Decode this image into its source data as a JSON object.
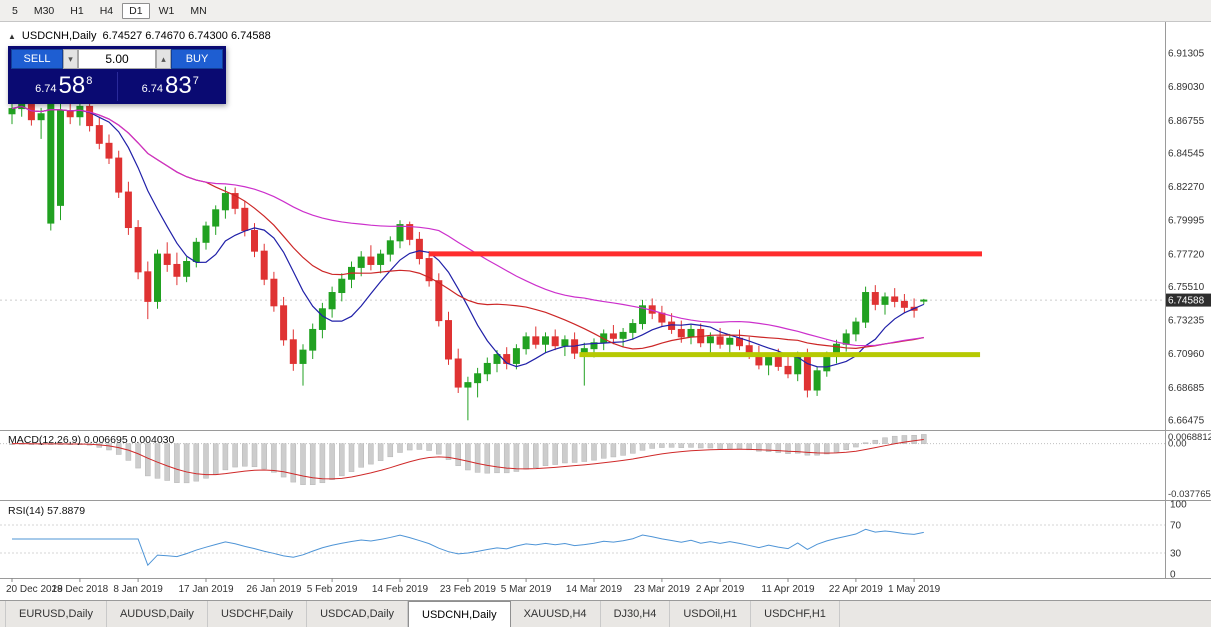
{
  "toolbar": {
    "timeframes": [
      "5",
      "M30",
      "H1",
      "H4",
      "D1",
      "W1",
      "MN"
    ],
    "active_timeframe": "D1"
  },
  "header": {
    "symbol": "USDCNH,Daily",
    "ohlc": "6.74527 6.74670 6.74300 6.74588"
  },
  "icons": {
    "quick_trade_toggle": "▲",
    "spin_up": "▴",
    "spin_down": "▾"
  },
  "trade_panel": {
    "sell_label": "SELL",
    "buy_label": "BUY",
    "lot_value": "5.00",
    "sell_price_main": "6.74",
    "sell_price_big": "58",
    "sell_price_sup": "8",
    "buy_price_main": "6.74",
    "buy_price_big": "83",
    "buy_price_sup": "7"
  },
  "price_axis": {
    "labels": [
      "6.91305",
      "6.89030",
      "6.86755",
      "6.84545",
      "6.82270",
      "6.79995",
      "6.77720",
      "6.75510",
      "6.73235",
      "6.70960",
      "6.68685",
      "6.66475"
    ],
    "current_price": "6.74588"
  },
  "indicators": {
    "macd": {
      "label": "MACD(12,26,9) 0.006695 0.004030",
      "axis_labels": [
        "0.0068812",
        "0.00",
        "-0.037765"
      ]
    },
    "rsi": {
      "label": "RSI(14) 57.8879",
      "axis_labels": [
        "100",
        "70",
        "30",
        "0"
      ]
    }
  },
  "tabs": {
    "items": [
      "EURUSD,Daily",
      "AUDUSD,Daily",
      "USDCHF,Daily",
      "USDCAD,Daily",
      "USDCNH,Daily",
      "XAUUSD,H4",
      "DJ30,H4",
      "USDOil,H1",
      "USDCHF,H1"
    ],
    "active": "USDCNH,Daily"
  },
  "chart_data": {
    "type": "candlestick",
    "symbol": "USDCNH",
    "timeframe": "Daily",
    "bid": 6.74588,
    "y_range": [
      6.662,
      6.926
    ],
    "colors": {
      "up": "#21a121",
      "down": "#df3333",
      "macd_hist": "#cdcdcd",
      "macd_signal": "#cf2929",
      "rsi": "#4e94d6",
      "badge_bg": "#2e2e2e"
    },
    "overlays": {
      "ma_fast": {
        "period": 8,
        "color": "#2020a8"
      },
      "ma_mid": {
        "period": 21,
        "color": "#cc2626"
      },
      "ma_slow": {
        "period": 45,
        "color": "#cc30cc"
      }
    },
    "hlines": [
      {
        "name": "resistance-line",
        "price": 6.7772,
        "from": 43,
        "to": 100,
        "color": "#ff2d2d",
        "width": 5
      },
      {
        "name": "support-line",
        "price": 6.709,
        "from": 58.5,
        "to": 99.8,
        "color": "#b6c902",
        "width": 5
      }
    ],
    "macd": {
      "fast": 12,
      "slow": 26,
      "signal": 9,
      "value": 0.006695,
      "signal_value": 0.00403
    },
    "rsi": {
      "period": 14,
      "value": 57.8879
    },
    "date_ticks": [
      [
        0,
        "20 Dec 2018"
      ],
      [
        7,
        "29 Dec 2018"
      ],
      [
        13,
        "8 Jan 2019"
      ],
      [
        20,
        "17 Jan 2019"
      ],
      [
        27,
        "26 Jan 2019"
      ],
      [
        33,
        "5 Feb 2019"
      ],
      [
        40,
        "14 Feb 2019"
      ],
      [
        47,
        "23 Feb 2019"
      ],
      [
        53,
        "5 Mar 2019"
      ],
      [
        60,
        "14 Mar 2019"
      ],
      [
        67,
        "23 Mar 2019"
      ],
      [
        73,
        "2 Apr 2019"
      ],
      [
        80,
        "11 Apr 2019"
      ],
      [
        87,
        "22 Apr 2019"
      ],
      [
        93,
        "1 May 2019"
      ]
    ],
    "candles": [
      [
        6.872,
        6.879,
        6.865,
        6.8755
      ],
      [
        6.8755,
        6.882,
        6.87,
        6.8785
      ],
      [
        6.8785,
        6.885,
        6.864,
        6.868
      ],
      [
        6.868,
        6.876,
        6.855,
        6.872
      ],
      [
        6.798,
        6.886,
        6.793,
        6.88
      ],
      [
        6.81,
        6.88,
        6.8,
        6.874
      ],
      [
        6.874,
        6.882,
        6.865,
        6.87
      ],
      [
        6.87,
        6.88,
        6.864,
        6.877
      ],
      [
        6.877,
        6.885,
        6.86,
        6.864
      ],
      [
        6.864,
        6.87,
        6.848,
        6.852
      ],
      [
        6.852,
        6.858,
        6.838,
        6.842
      ],
      [
        6.842,
        6.847,
        6.815,
        6.819
      ],
      [
        6.819,
        6.826,
        6.79,
        6.795
      ],
      [
        6.795,
        6.8,
        6.76,
        6.765
      ],
      [
        6.765,
        6.772,
        6.733,
        6.745
      ],
      [
        6.745,
        6.78,
        6.74,
        6.777
      ],
      [
        6.777,
        6.785,
        6.765,
        6.77
      ],
      [
        6.77,
        6.778,
        6.756,
        6.762
      ],
      [
        6.762,
        6.775,
        6.758,
        6.772
      ],
      [
        6.772,
        6.788,
        6.768,
        6.785
      ],
      [
        6.785,
        6.799,
        6.78,
        6.796
      ],
      [
        6.796,
        6.81,
        6.79,
        6.807
      ],
      [
        6.807,
        6.8227,
        6.801,
        6.818
      ],
      [
        6.818,
        6.822,
        6.804,
        6.808
      ],
      [
        6.808,
        6.813,
        6.789,
        6.793
      ],
      [
        6.793,
        6.798,
        6.775,
        6.779
      ],
      [
        6.779,
        6.784,
        6.756,
        6.76
      ],
      [
        6.76,
        6.765,
        6.738,
        6.742
      ],
      [
        6.742,
        6.748,
        6.715,
        6.719
      ],
      [
        6.719,
        6.726,
        6.698,
        6.703
      ],
      [
        6.703,
        6.716,
        6.688,
        6.712
      ],
      [
        6.712,
        6.73,
        6.706,
        6.726
      ],
      [
        6.726,
        6.744,
        6.72,
        6.74
      ],
      [
        6.74,
        6.755,
        6.734,
        6.751
      ],
      [
        6.751,
        6.764,
        6.745,
        6.76
      ],
      [
        6.76,
        6.772,
        6.754,
        6.768
      ],
      [
        6.768,
        6.779,
        6.762,
        6.775
      ],
      [
        6.775,
        6.783,
        6.766,
        6.77
      ],
      [
        6.77,
        6.78,
        6.764,
        6.777
      ],
      [
        6.777,
        6.789,
        6.772,
        6.786
      ],
      [
        6.786,
        6.7999,
        6.781,
        6.797
      ],
      [
        6.797,
        6.799,
        6.783,
        6.787
      ],
      [
        6.787,
        6.792,
        6.77,
        6.774
      ],
      [
        6.774,
        6.779,
        6.755,
        6.759
      ],
      [
        6.759,
        6.764,
        6.728,
        6.732
      ],
      [
        6.732,
        6.738,
        6.702,
        6.706
      ],
      [
        6.706,
        6.713,
        6.683,
        6.687
      ],
      [
        6.687,
        6.694,
        6.6645,
        6.69
      ],
      [
        6.69,
        6.7,
        6.68,
        6.696
      ],
      [
        6.696,
        6.707,
        6.691,
        6.703
      ],
      [
        6.703,
        6.712,
        6.697,
        6.709
      ],
      [
        6.709,
        6.714,
        6.699,
        6.703
      ],
      [
        6.703,
        6.716,
        6.699,
        6.713
      ],
      [
        6.713,
        6.724,
        6.709,
        6.721
      ],
      [
        6.721,
        6.728,
        6.713,
        6.716
      ],
      [
        6.716,
        6.724,
        6.71,
        6.721
      ],
      [
        6.721,
        6.726,
        6.712,
        6.715
      ],
      [
        6.715,
        6.722,
        6.708,
        6.719
      ],
      [
        6.719,
        6.724,
        6.706,
        6.71
      ],
      [
        6.71,
        6.717,
        6.688,
        6.713
      ],
      [
        6.713,
        6.72,
        6.707,
        6.717
      ],
      [
        6.717,
        6.726,
        6.712,
        6.723
      ],
      [
        6.723,
        6.729,
        6.716,
        6.72
      ],
      [
        6.72,
        6.727,
        6.714,
        6.724
      ],
      [
        6.724,
        6.733,
        6.719,
        6.73
      ],
      [
        6.73,
        6.746,
        6.726,
        6.742
      ],
      [
        6.742,
        6.747,
        6.733,
        6.737
      ],
      [
        6.737,
        6.742,
        6.728,
        6.731
      ],
      [
        6.731,
        6.737,
        6.723,
        6.726
      ],
      [
        6.726,
        6.732,
        6.717,
        6.721
      ],
      [
        6.721,
        6.729,
        6.716,
        6.726
      ],
      [
        6.726,
        6.73,
        6.714,
        6.717
      ],
      [
        6.717,
        6.724,
        6.71,
        6.721
      ],
      [
        6.721,
        6.727,
        6.713,
        6.716
      ],
      [
        6.716,
        6.723,
        6.709,
        6.72
      ],
      [
        6.72,
        6.726,
        6.712,
        6.715
      ],
      [
        6.715,
        6.721,
        6.706,
        6.709
      ],
      [
        6.709,
        6.715,
        6.699,
        6.702
      ],
      [
        6.702,
        6.71,
        6.695,
        6.707
      ],
      [
        6.707,
        6.713,
        6.698,
        6.701
      ],
      [
        6.701,
        6.709,
        6.693,
        6.696
      ],
      [
        6.696,
        6.711,
        6.691,
        6.708
      ],
      [
        6.708,
        6.713,
        6.68,
        6.685
      ],
      [
        6.685,
        6.701,
        6.681,
        6.698
      ],
      [
        6.698,
        6.711,
        6.694,
        6.708
      ],
      [
        6.708,
        6.719,
        6.703,
        6.716
      ],
      [
        6.716,
        6.726,
        6.711,
        6.723
      ],
      [
        6.723,
        6.734,
        6.718,
        6.731
      ],
      [
        6.731,
        6.755,
        6.727,
        6.751
      ],
      [
        6.751,
        6.756,
        6.739,
        6.743
      ],
      [
        6.743,
        6.751,
        6.736,
        6.748
      ],
      [
        6.748,
        6.754,
        6.741,
        6.745
      ],
      [
        6.745,
        6.75,
        6.737,
        6.741
      ],
      [
        6.741,
        6.747,
        6.734,
        6.739
      ],
      [
        6.74527,
        6.7467,
        6.743,
        6.74588
      ]
    ]
  }
}
